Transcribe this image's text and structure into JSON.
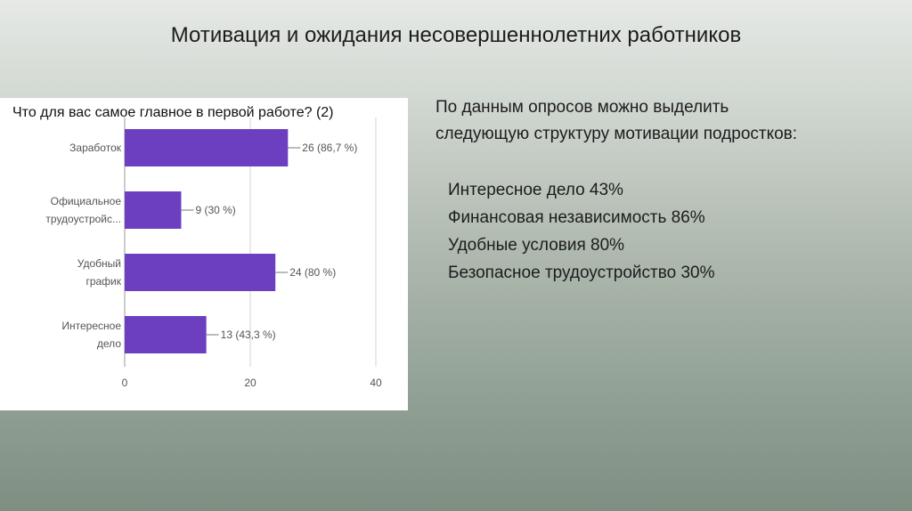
{
  "slide": {
    "title": "Мотивация и ожидания несовершеннолетних работников"
  },
  "chart_data": {
    "type": "bar",
    "orientation": "horizontal",
    "title": "Что для вас самое главное в первой работе? (2)",
    "categories": [
      [
        "Заработок"
      ],
      [
        "Официальное",
        "трудоустройс..."
      ],
      [
        "Удобный",
        "график"
      ],
      [
        "Интересное",
        "дело"
      ]
    ],
    "values": [
      26,
      9,
      24,
      13
    ],
    "value_labels": [
      "26 (86,7 %)",
      "9 (30 %)",
      "24 (80 %)",
      "13 (43,3 %)"
    ],
    "xlim": [
      0,
      40
    ],
    "xticks": [
      0,
      20,
      40
    ],
    "bar_color": "#6c3fc0",
    "grid": true
  },
  "summary": {
    "intro_lines": [
      "По данным опросов можно выделить",
      "следующую структуру мотивации подростков:"
    ],
    "items": [
      "Интересное дело 43%",
      "Финансовая независимость 86%",
      "Удобные условия 80%",
      "Безопасное трудоустройство 30%"
    ]
  }
}
